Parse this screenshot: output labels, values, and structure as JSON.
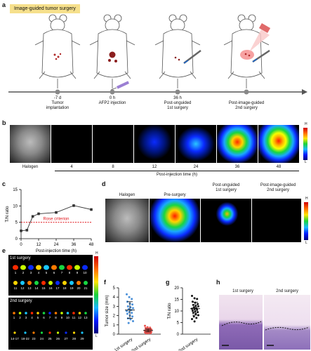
{
  "panels": {
    "a": "a",
    "b": "b",
    "c": "c",
    "d": "d",
    "e": "e",
    "f": "f",
    "g": "g",
    "h": "h"
  },
  "panel_a": {
    "banner": "Image-guided tumor surgery",
    "timeline": [
      {
        "time": "-7 d",
        "event": "Tumor\nimplantation"
      },
      {
        "time": "0 h",
        "event": "AFP2 injection"
      },
      {
        "time": "36 h",
        "event": "Post-unguided\n1st surgery"
      },
      {
        "time": "",
        "event": "Post-image-guided\n2nd surgery"
      }
    ]
  },
  "panel_b": {
    "labels": [
      "Halogen",
      "4",
      "8",
      "12",
      "24",
      "36",
      "48"
    ],
    "axis_title": "Post-injection time (h)",
    "scale_high": "H",
    "scale_low": "L"
  },
  "panel_d": {
    "labels": [
      "Halogen",
      "Pre-surgery",
      "Post-unguided\n1st surgery",
      "Post-image-guided\n2nd surgery"
    ],
    "scale_high": "H",
    "scale_low": "L"
  },
  "panel_e": {
    "first_label": "1st surgery",
    "first_numbers": [
      "1",
      "2",
      "3",
      "4",
      "5",
      "6",
      "7",
      "8",
      "9",
      "10",
      "11",
      "12",
      "13",
      "14",
      "15",
      "16",
      "17",
      "18",
      "19",
      "20",
      "21"
    ],
    "second_label": "2nd surgery",
    "second_top_numbers": [
      "1",
      "2",
      "3",
      "4",
      "5",
      "6",
      "7",
      "8",
      "9",
      "10",
      "11",
      "12",
      "13"
    ],
    "second_bottom_numbers": [
      "14-17",
      "18-22",
      "23",
      "24",
      "25",
      "26",
      "27",
      "28",
      "29"
    ],
    "scale_high": "H",
    "scale_low": "L"
  },
  "panel_h": {
    "left_label": "1st surgery",
    "right_label": "2nd surgery"
  },
  "chart_data": [
    {
      "panel": "c",
      "type": "line",
      "x": [
        0,
        4,
        8,
        12,
        24,
        36,
        48
      ],
      "y": [
        2.4,
        2.6,
        6.8,
        7.6,
        8.0,
        10.1,
        8.9
      ],
      "err": [
        0.2,
        0.2,
        0.3,
        0.4,
        0.4,
        0.4,
        0.4
      ],
      "xlabel": "Post-injection time (h)",
      "ylabel": "T/N ratio",
      "xticks": [
        0,
        12,
        24,
        36,
        48
      ],
      "yticks": [
        0,
        5,
        10,
        15
      ],
      "xlim": [
        0,
        48
      ],
      "ylim": [
        0,
        15
      ],
      "threshold": {
        "value": 5,
        "label": "Rose criterion",
        "color": "#e0191f"
      }
    },
    {
      "panel": "f",
      "type": "scatter",
      "ylabel": "Tumor size (mm)",
      "yticks": [
        0,
        1,
        2,
        3,
        4,
        5
      ],
      "ylim": [
        0,
        5
      ],
      "categories": [
        "1st surgery",
        "2nd surgery"
      ],
      "series": [
        {
          "values": [
            4.3,
            4.0,
            3.8,
            3.5,
            3.3,
            3.2,
            3.0,
            2.9,
            2.8,
            2.7,
            2.6,
            2.5,
            2.4,
            2.3,
            2.2,
            2.0,
            1.9,
            1.7,
            1.6,
            1.4,
            1.2
          ],
          "mean": 2.6,
          "sd": 0.9,
          "color": "#4a90d9"
        },
        {
          "values": [
            0.9,
            0.75,
            0.7,
            0.65,
            0.6,
            0.55,
            0.55,
            0.5,
            0.5,
            0.45,
            0.45,
            0.4,
            0.4,
            0.4,
            0.35,
            0.35,
            0.3,
            0.3,
            0.3,
            0.25,
            0.25,
            0.2,
            0.2,
            0.2,
            0.15,
            0.15,
            0.1,
            0.1,
            0.1
          ],
          "mean": 0.4,
          "sd": 0.15,
          "color": "#e8534e"
        }
      ]
    },
    {
      "panel": "g",
      "type": "scatter",
      "ylabel": "T/N ratio",
      "yticks": [
        0,
        5,
        10,
        15,
        20
      ],
      "ylim": [
        0,
        20
      ],
      "categories": [
        "2nd surgery"
      ],
      "series": [
        {
          "values": [
            16.5,
            15.5,
            15.2,
            14.0,
            13.6,
            13.0,
            12.6,
            12.2,
            12.0,
            11.6,
            11.2,
            11.0,
            10.8,
            10.5,
            10.1,
            9.8,
            9.5,
            9.2,
            8.8,
            8.2,
            7.6,
            7.0,
            6.5,
            5.5
          ],
          "mean": 11.0,
          "sd": 2.8,
          "color": "#111111"
        }
      ]
    }
  ]
}
